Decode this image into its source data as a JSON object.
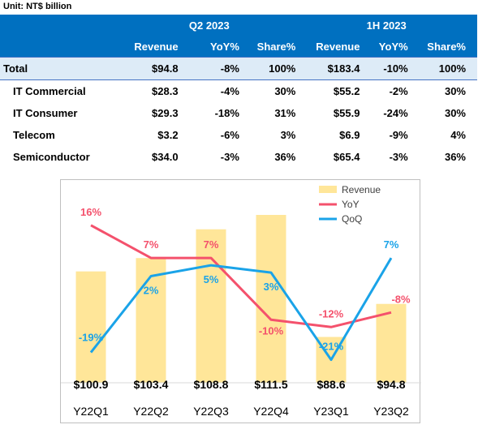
{
  "unit_label": "Unit: NT$ billion",
  "table": {
    "groups": [
      "Q2 2023",
      "1H 2023"
    ],
    "columns": [
      "Revenue",
      "YoY%",
      "Share%",
      "Revenue",
      "YoY%",
      "Share%"
    ],
    "rows": [
      {
        "label": "Total",
        "q_rev": "$94.8",
        "q_yoy": "-8%",
        "q_share": "100%",
        "h_rev": "$183.4",
        "h_yoy": "-10%",
        "h_share": "100%"
      },
      {
        "label": "IT Commercial",
        "q_rev": "$28.3",
        "q_yoy": "-4%",
        "q_share": "30%",
        "h_rev": "$55.2",
        "h_yoy": "-2%",
        "h_share": "30%"
      },
      {
        "label": "IT Consumer",
        "q_rev": "$29.3",
        "q_yoy": "-18%",
        "q_share": "31%",
        "h_rev": "$55.9",
        "h_yoy": "-24%",
        "h_share": "30%"
      },
      {
        "label": "Telecom",
        "q_rev": "$3.2",
        "q_yoy": "-6%",
        "q_share": "3%",
        "h_rev": "$6.9",
        "h_yoy": "-9%",
        "h_share": "4%"
      },
      {
        "label": "Semiconductor",
        "q_rev": "$34.0",
        "q_yoy": "-3%",
        "q_share": "36%",
        "h_rev": "$65.4",
        "h_yoy": "-3%",
        "h_share": "36%"
      }
    ]
  },
  "chart_data": {
    "type": "bar",
    "categories": [
      "Y22Q1",
      "Y22Q2",
      "Y22Q3",
      "Y22Q4",
      "Y23Q1",
      "Y23Q2"
    ],
    "series": [
      {
        "name": "Revenue",
        "type": "bar",
        "values": [
          100.9,
          103.4,
          108.8,
          111.5,
          88.6,
          94.8
        ],
        "labels": [
          "$100.9",
          "$103.4",
          "$108.8",
          "$111.5",
          "$88.6",
          "$94.8"
        ],
        "color": "#ffe699"
      },
      {
        "name": "YoY",
        "type": "line",
        "values": [
          16,
          7,
          7,
          -10,
          -12,
          -8
        ],
        "labels": [
          "16%",
          "7%",
          "7%",
          "-10%",
          "-12%",
          "-8%"
        ],
        "color": "#f4516c"
      },
      {
        "name": "QoQ",
        "type": "line",
        "values": [
          -19,
          2,
          5,
          3,
          -21,
          7
        ],
        "labels": [
          "-19%",
          "2%",
          "5%",
          "3%",
          "-21%",
          "7%"
        ],
        "color": "#1aa3e8"
      }
    ],
    "bar_ylim": [
      80,
      115
    ],
    "line_ylim": [
      -24,
      24
    ],
    "legend": "top-right"
  },
  "colors": {
    "header_bg": "#0070c0",
    "total_bg": "#ddebf7",
    "bar": "#ffe699",
    "yoy": "#f4516c",
    "qoq": "#1aa3e8"
  }
}
